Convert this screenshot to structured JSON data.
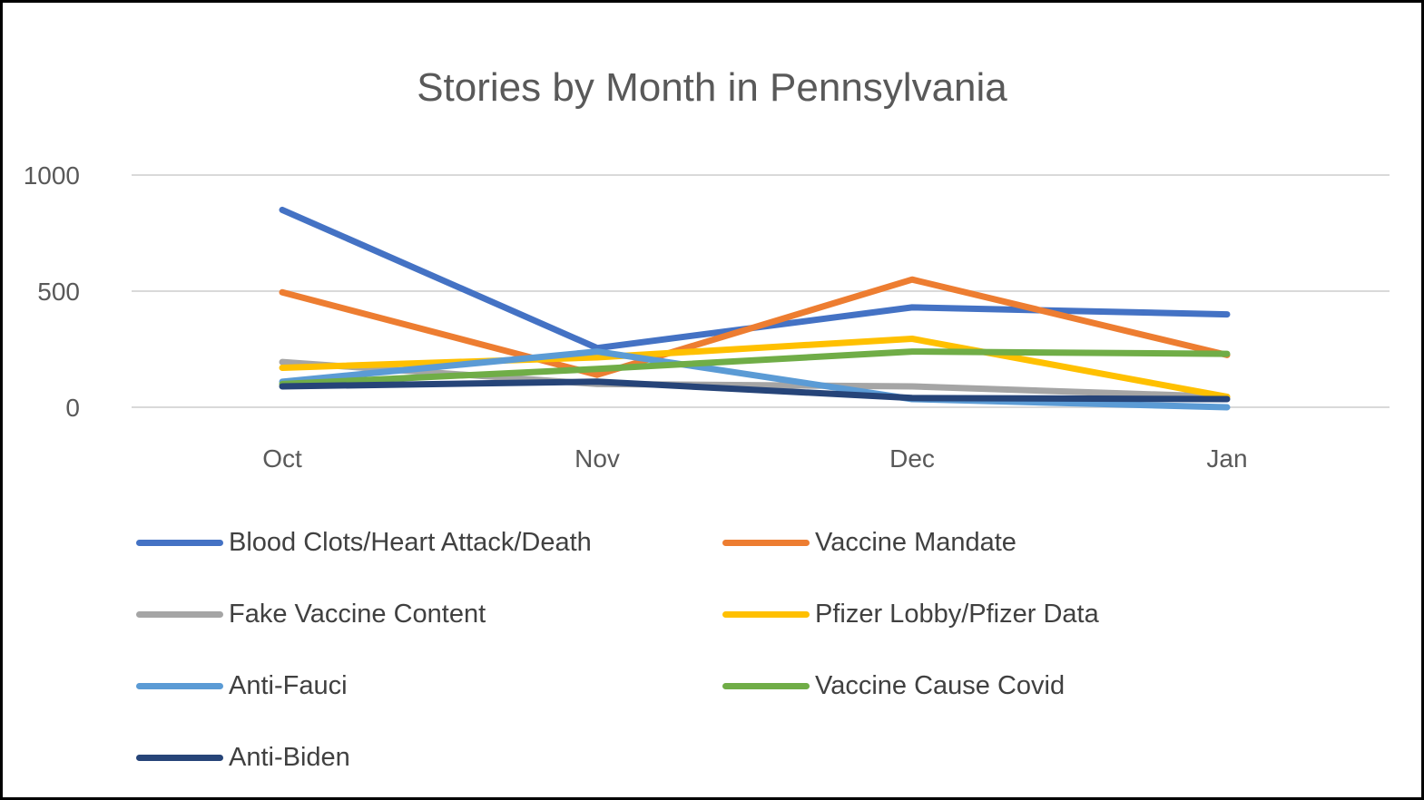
{
  "chart_data": {
    "type": "line",
    "title": "Stories by Month in Pennsylvania",
    "xlabel": "",
    "ylabel": "",
    "categories": [
      "Oct",
      "Nov",
      "Dec",
      "Jan"
    ],
    "ylim": [
      0,
      1000
    ],
    "yticks": [
      0,
      500,
      1000
    ],
    "grid": true,
    "legend_position": "bottom",
    "series": [
      {
        "name": "Blood Clots/Heart Attack/Death",
        "color": "#4472C4",
        "values": [
          850,
          255,
          430,
          400
        ]
      },
      {
        "name": "Vaccine Mandate",
        "color": "#ED7D31",
        "values": [
          495,
          140,
          550,
          225
        ]
      },
      {
        "name": "Fake Vaccine Content",
        "color": "#A5A5A5",
        "values": [
          195,
          100,
          90,
          45
        ]
      },
      {
        "name": "Pfizer Lobby/Pfizer Data",
        "color": "#FFC000",
        "values": [
          170,
          215,
          295,
          45
        ]
      },
      {
        "name": "Anti-Fauci",
        "color": "#5B9BD5",
        "values": [
          110,
          240,
          35,
          0
        ]
      },
      {
        "name": "Vaccine Cause Covid",
        "color": "#70AD47",
        "values": [
          100,
          165,
          240,
          230
        ]
      },
      {
        "name": "Anti-Biden",
        "color": "#264478",
        "values": [
          90,
          110,
          40,
          35
        ]
      }
    ]
  }
}
